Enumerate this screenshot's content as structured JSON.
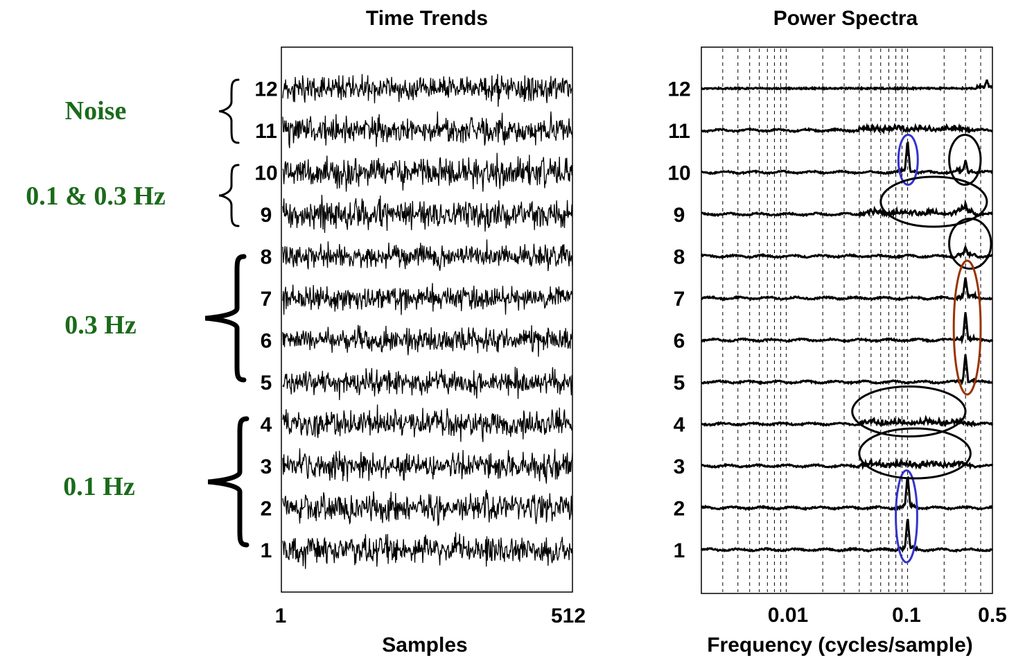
{
  "chart_data": [
    {
      "type": "line",
      "title": "Time Trends",
      "xlabel": "Samples",
      "ylabel": "",
      "x_ticks": [
        "1",
        "512"
      ],
      "xlim": [
        1,
        512
      ],
      "grid": false,
      "traces": [
        "1",
        "2",
        "3",
        "4",
        "5",
        "6",
        "7",
        "8",
        "9",
        "10",
        "11",
        "12"
      ],
      "groups": [
        {
          "label": "Noise",
          "traces": [
            "11",
            "12"
          ]
        },
        {
          "label": "0.1 & 0.3 Hz",
          "traces": [
            "9",
            "10"
          ]
        },
        {
          "label": "0.3 Hz",
          "traces": [
            "5",
            "6",
            "7",
            "8"
          ]
        },
        {
          "label": "0.1 Hz",
          "traces": [
            "1",
            "2",
            "3",
            "4"
          ]
        }
      ]
    },
    {
      "type": "line",
      "title": "Power Spectra",
      "xlabel": "Frequency (cycles/sample)",
      "ylabel": "",
      "x_scale": "log",
      "x_ticks": [
        "0.01",
        "0.1",
        "0.5"
      ],
      "xlim": [
        0.002,
        0.5
      ],
      "grid": true,
      "traces": [
        "1",
        "2",
        "3",
        "4",
        "5",
        "6",
        "7",
        "8",
        "9",
        "10",
        "11",
        "12"
      ],
      "peaks": [
        {
          "trace": "1",
          "frequency": 0.1,
          "relative_height": 0.8
        },
        {
          "trace": "2",
          "frequency": 0.1,
          "relative_height": 0.8
        },
        {
          "trace": "5",
          "frequency": 0.3,
          "relative_height": 0.7
        },
        {
          "trace": "6",
          "frequency": 0.3,
          "relative_height": 0.7
        },
        {
          "trace": "7",
          "frequency": 0.3,
          "relative_height": 0.5
        },
        {
          "trace": "8",
          "frequency": 0.3,
          "relative_height": 0.2
        },
        {
          "trace": "9",
          "frequency": 0.3,
          "relative_height": 0.2
        },
        {
          "trace": "10",
          "frequency": 0.1,
          "relative_height": 0.8
        },
        {
          "trace": "10",
          "frequency": 0.3,
          "relative_height": 0.3
        },
        {
          "trace": "12",
          "frequency": 0.45,
          "relative_height": 0.2
        }
      ],
      "highlights": [
        {
          "traces": [
            "10"
          ],
          "frequency_range": [
            0.085,
            0.12
          ],
          "color": "#3333cc"
        },
        {
          "traces": [
            "1",
            "2"
          ],
          "frequency_range": [
            0.08,
            0.12
          ],
          "color": "#3333cc"
        },
        {
          "traces": [
            "10"
          ],
          "frequency_range": [
            0.22,
            0.4
          ],
          "color": "#000000"
        },
        {
          "traces": [
            "9"
          ],
          "frequency_range": [
            0.06,
            0.45
          ],
          "color": "#000000"
        },
        {
          "traces": [
            "8"
          ],
          "frequency_range": [
            0.22,
            0.5
          ],
          "color": "#000000"
        },
        {
          "traces": [
            "5",
            "6",
            "7"
          ],
          "frequency_range": [
            0.24,
            0.4
          ],
          "color": "#993300"
        },
        {
          "traces": [
            "4"
          ],
          "frequency_range": [
            0.035,
            0.3
          ],
          "color": "#000000"
        },
        {
          "traces": [
            "3"
          ],
          "frequency_range": [
            0.04,
            0.33
          ],
          "color": "#000000"
        }
      ]
    }
  ]
}
